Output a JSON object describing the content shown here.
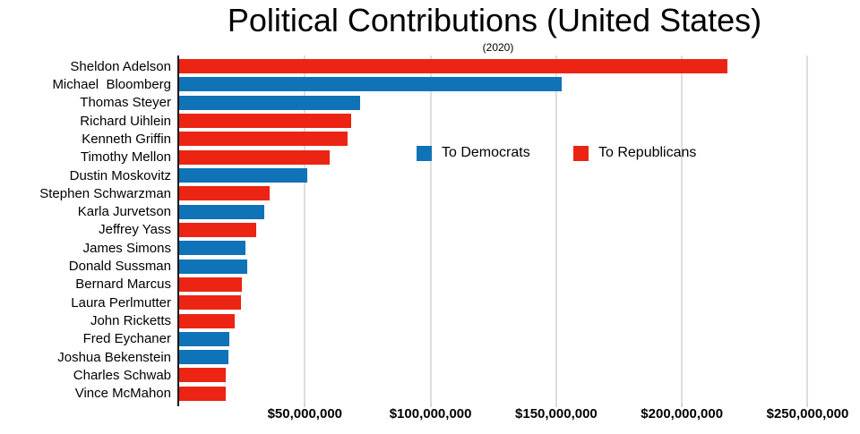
{
  "title": "Political Contributions (United States)",
  "subtitle": "(2020)",
  "colors": {
    "democrat": "#1173b7",
    "republican": "#ec2413",
    "gridline": "#dedede",
    "axis": "#161616",
    "text": "#000000"
  },
  "legend": [
    {
      "label": "To Democrats",
      "color_key": "democrat"
    },
    {
      "label": "To Republicans",
      "color_key": "republican"
    }
  ],
  "chart_data": {
    "type": "bar",
    "orientation": "horizontal",
    "title": "Political Contributions (United States)",
    "subtitle": "(2020)",
    "xlabel": "",
    "ylabel": "",
    "xlim": [
      0,
      268000000
    ],
    "grid": true,
    "legend_position": "center-right-inside",
    "x_ticks": [
      {
        "value": 50000000,
        "label": "$50,000,000"
      },
      {
        "value": 100000000,
        "label": "$100,000,000"
      },
      {
        "value": 150000000,
        "label": "$150,000,000"
      },
      {
        "value": 200000000,
        "label": "$200,000,000"
      },
      {
        "value": 250000000,
        "label": "$250,000,000"
      }
    ],
    "rows": [
      {
        "name": "Sheldon Adelson",
        "value": 218000000,
        "party": "republican"
      },
      {
        "name": "Michael  Bloomberg",
        "value": 152000000,
        "party": "democrat"
      },
      {
        "name": "Thomas Steyer",
        "value": 72000000,
        "party": "democrat"
      },
      {
        "name": "Richard Uihlein",
        "value": 68500000,
        "party": "republican"
      },
      {
        "name": "Kenneth Griffin",
        "value": 67000000,
        "party": "republican"
      },
      {
        "name": "Timothy Mellon",
        "value": 60000000,
        "party": "republican"
      },
      {
        "name": "Dustin Moskovitz",
        "value": 51000000,
        "party": "democrat"
      },
      {
        "name": "Stephen Schwarzman",
        "value": 36000000,
        "party": "republican"
      },
      {
        "name": "Karla Jurvetson",
        "value": 34000000,
        "party": "democrat"
      },
      {
        "name": "Jeffrey Yass",
        "value": 30500000,
        "party": "republican"
      },
      {
        "name": "James Simons",
        "value": 26500000,
        "party": "democrat"
      },
      {
        "name": "Donald Sussman",
        "value": 27000000,
        "party": "democrat"
      },
      {
        "name": "Bernard Marcus",
        "value": 25000000,
        "party": "republican"
      },
      {
        "name": "Laura Perlmutter",
        "value": 24500000,
        "party": "republican"
      },
      {
        "name": "John Ricketts",
        "value": 22000000,
        "party": "republican"
      },
      {
        "name": "Fred Eychaner",
        "value": 20000000,
        "party": "democrat"
      },
      {
        "name": "Joshua Bekenstein",
        "value": 19500000,
        "party": "democrat"
      },
      {
        "name": "Charles Schwab",
        "value": 18500000,
        "party": "republican"
      },
      {
        "name": "Vince McMahon",
        "value": 18500000,
        "party": "republican"
      }
    ]
  }
}
